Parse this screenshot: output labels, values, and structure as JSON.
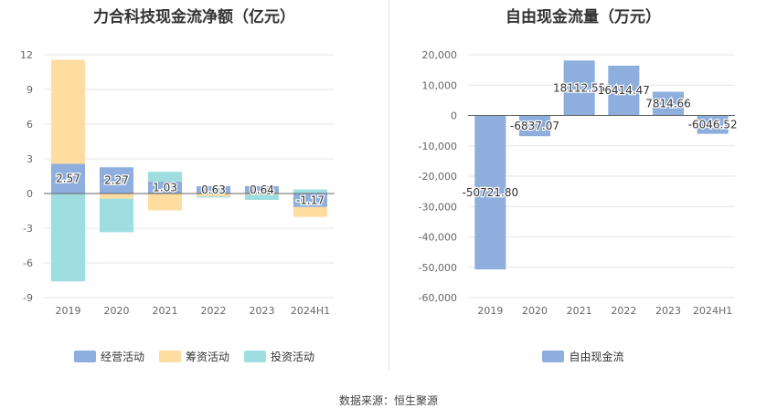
{
  "source_text": "数据来源：恒生聚源",
  "chart_data": [
    {
      "type": "bar",
      "stacked": true,
      "title": "力合科技现金流净额（亿元）",
      "categories": [
        "2019",
        "2020",
        "2021",
        "2022",
        "2023",
        "2024H1"
      ],
      "ylim": [
        -9,
        12
      ],
      "yticks": [
        -9,
        -6,
        -3,
        0,
        3,
        6,
        9,
        12
      ],
      "grid": true,
      "legend_position": "bottom",
      "series": [
        {
          "name": "经营活动",
          "color": "#8eaedd",
          "values": [
            2.57,
            2.27,
            1.03,
            0.63,
            0.64,
            -1.17
          ],
          "labels": [
            "2.57",
            "2.27",
            "1.03",
            "0.63",
            "0.64",
            "-1.17"
          ]
        },
        {
          "name": "筹资活动",
          "color": "#ffdca0",
          "values": [
            9.0,
            -0.45,
            -1.45,
            -0.25,
            -0.1,
            -0.85
          ]
        },
        {
          "name": "投资活动",
          "color": "#9fdee0",
          "values": [
            -7.6,
            -2.9,
            0.85,
            -0.1,
            -0.45,
            0.35
          ]
        }
      ]
    },
    {
      "type": "bar",
      "title": "自由现金流量（万元）",
      "categories": [
        "2019",
        "2020",
        "2021",
        "2022",
        "2023",
        "2024H1"
      ],
      "ylim": [
        -60000,
        20000
      ],
      "yticks": [
        -60000,
        -50000,
        -40000,
        -30000,
        -20000,
        -10000,
        0,
        10000,
        20000
      ],
      "ytick_labels": [
        "-60,000",
        "-50,000",
        "-40,000",
        "-30,000",
        "-20,000",
        "-10,000",
        "0",
        "10,000",
        "20,000"
      ],
      "grid": true,
      "legend_position": "bottom",
      "series": [
        {
          "name": "自由现金流",
          "color": "#8eaedd",
          "values": [
            -50721.8,
            -6837.07,
            18112.55,
            16414.47,
            7814.66,
            -6046.52
          ],
          "labels": [
            "-50721.80",
            "-6837.07",
            "18112.55",
            "16414.47",
            "7814.66",
            "-6046.52"
          ]
        }
      ]
    }
  ]
}
